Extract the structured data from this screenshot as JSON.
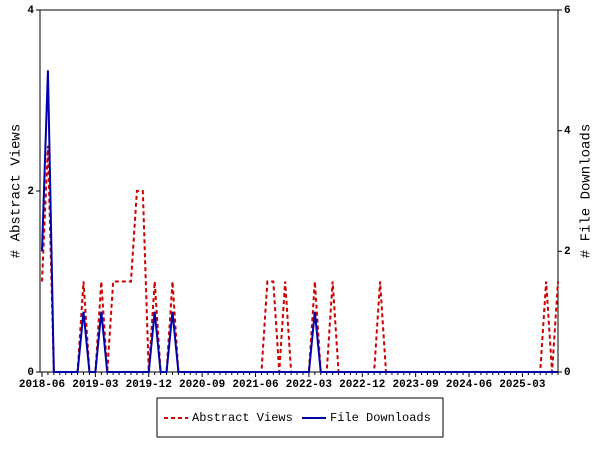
{
  "chart_data": {
    "type": "line",
    "y_label": "# Abstract Views",
    "y2_label": "# File Downloads",
    "categories": [
      "2018-06",
      null,
      null,
      null,
      null,
      null,
      null,
      null,
      null,
      "2019-03",
      null,
      null,
      null,
      null,
      null,
      null,
      null,
      null,
      "2019-12",
      null,
      null,
      null,
      null,
      null,
      null,
      null,
      null,
      "2020-09",
      null,
      null,
      null,
      null,
      null,
      null,
      null,
      null,
      "2021-06",
      null,
      null,
      null,
      null,
      null,
      null,
      null,
      null,
      "2022-03",
      null,
      null,
      null,
      null,
      null,
      null,
      null,
      null,
      "2022-12",
      null,
      null,
      null,
      null,
      null,
      null,
      null,
      null,
      "2023-09",
      null,
      null,
      null,
      null,
      null,
      null,
      null,
      null,
      "2024-06",
      null,
      null,
      null,
      null,
      null,
      null,
      null,
      null,
      "2025-03",
      null,
      null,
      null,
      null,
      null,
      null
    ],
    "series": [
      {
        "name": "Abstract Views",
        "color": "#cc0000",
        "dashed": true,
        "values": [
          1,
          2.5,
          0,
          0,
          0,
          0,
          0,
          1,
          0,
          0,
          1,
          0,
          1,
          1,
          1,
          1,
          2,
          2,
          0,
          1,
          0,
          0,
          1,
          0,
          0,
          0,
          0,
          0,
          0,
          0,
          0,
          0,
          0,
          0,
          0,
          0,
          0,
          0,
          1,
          1,
          0,
          1,
          0,
          0,
          0,
          0,
          1,
          0,
          0,
          1,
          0,
          0,
          0,
          0,
          0,
          0,
          0,
          1,
          0,
          0,
          0,
          0,
          0,
          0,
          0,
          0,
          0,
          0,
          0,
          0,
          0,
          0,
          0,
          0,
          0,
          0,
          0,
          0,
          0,
          0,
          0,
          0,
          0,
          0,
          0,
          1,
          0,
          1
        ]
      },
      {
        "name": "File Downloads",
        "color": "#0000aa",
        "axis": "y2",
        "values": [
          2,
          5,
          0,
          0,
          0,
          0,
          0,
          1,
          0,
          0,
          1,
          0,
          0,
          0,
          0,
          0,
          0,
          0,
          0,
          1,
          0,
          0,
          1,
          0,
          0,
          0,
          0,
          0,
          0,
          0,
          0,
          0,
          0,
          0,
          0,
          0,
          0,
          0,
          0,
          0,
          0,
          0,
          0,
          0,
          0,
          0,
          1,
          0,
          0,
          0,
          0,
          0,
          0,
          0,
          0,
          0,
          0,
          0,
          0,
          0,
          0,
          0,
          0,
          0,
          0,
          0,
          0,
          0,
          0,
          0,
          0,
          0,
          0,
          0,
          0,
          0,
          0,
          0,
          0,
          0,
          0,
          0,
          0,
          0,
          0,
          0,
          0,
          0
        ]
      }
    ],
    "ylim": [
      0,
      4
    ],
    "yticks": [
      0,
      2,
      4
    ],
    "y2lim": [
      0,
      6
    ],
    "y2ticks": [
      0,
      2,
      4,
      6
    ],
    "legend": "bottom"
  }
}
